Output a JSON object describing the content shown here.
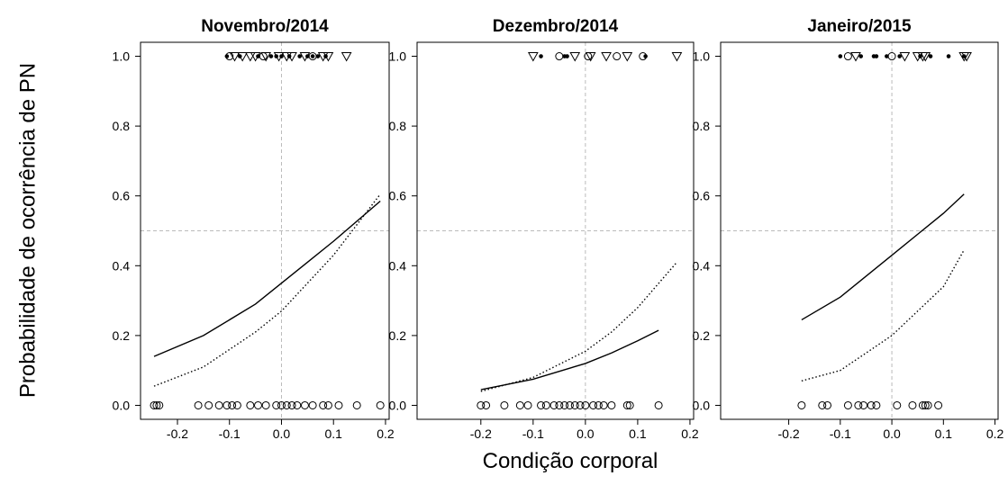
{
  "xlabel": "Condição corporal",
  "ylabel": "Probabilidade de ocorrência de PN",
  "chart_data": [
    {
      "type": "scatter",
      "title": "Novembro/2014",
      "xlim": [
        -0.271,
        0.207
      ],
      "ylim": [
        -0.04,
        1.04
      ],
      "xticks": [
        -0.2,
        -0.1,
        {
          "value": 0,
          "label": "0.0"
        },
        0.1,
        0.2
      ],
      "yticks": [
        {
          "value": 0,
          "label": "0.0"
        },
        0.2,
        0.4,
        0.6,
        0.8,
        {
          "value": 1,
          "label": "1.0"
        }
      ],
      "vline": 0,
      "hline": 0.5,
      "color": "#000000",
      "series": [
        {
          "marker": "circle",
          "x": [
            -0.245,
            -0.24,
            -0.235,
            -0.16,
            -0.14,
            -0.12,
            -0.105,
            -0.095,
            -0.085,
            -0.06,
            -0.045,
            -0.03,
            -0.01,
            0,
            0.01,
            0.02,
            0.03,
            0.045,
            0.06,
            0.08,
            0.09,
            0.11,
            0.145,
            0.19,
            -0.1,
            -0.035,
            0.06
          ],
          "values": [
            0,
            0,
            0,
            0,
            0,
            0,
            0,
            0,
            0,
            0,
            0,
            0,
            0,
            0,
            0,
            0,
            0,
            0,
            0,
            0,
            0,
            0,
            0,
            0,
            1,
            1,
            1
          ]
        },
        {
          "marker": "triangle",
          "x": [
            -0.09,
            -0.075,
            -0.06,
            -0.05,
            -0.03,
            -0.005,
            0.01,
            0.02,
            0.045,
            0.08,
            0.09,
            0.125
          ],
          "values": [
            1,
            1,
            1,
            1,
            1,
            1,
            1,
            1,
            1,
            1,
            1,
            1
          ]
        },
        {
          "marker": "dot",
          "x": [
            -0.105,
            -0.08,
            -0.045,
            -0.02,
            -0.01,
            0,
            0.015,
            0.035,
            0.05,
            0.06,
            0.07,
            0.085
          ],
          "values": [
            1,
            1,
            1,
            1,
            1,
            1,
            1,
            1,
            1,
            1,
            1,
            1
          ]
        },
        {
          "line": "solid",
          "x": [
            -0.245,
            -0.15,
            -0.05,
            0,
            0.05,
            0.1,
            0.19
          ],
          "values": [
            0.14,
            0.2,
            0.29,
            0.35,
            0.41,
            0.47,
            0.585
          ]
        },
        {
          "line": "dotted",
          "x": [
            -0.245,
            -0.15,
            -0.05,
            0,
            0.05,
            0.1,
            0.19
          ],
          "values": [
            0.055,
            0.11,
            0.21,
            0.27,
            0.35,
            0.43,
            0.605
          ]
        }
      ]
    },
    {
      "type": "scatter",
      "title": "Dezembro/2014",
      "xlim": [
        -0.322,
        0.207
      ],
      "ylim": [
        -0.04,
        1.04
      ],
      "xticks": [
        -0.2,
        -0.1,
        {
          "value": 0,
          "label": "0.0"
        },
        0.1,
        0.2
      ],
      "yticks": [
        {
          "value": 0,
          "label": "0.0"
        },
        0.2,
        0.4,
        0.6,
        0.8,
        {
          "value": 1,
          "label": "1.0"
        }
      ],
      "vline": 0,
      "hline": 0.5,
      "color": "#000000",
      "series": [
        {
          "marker": "circle",
          "x": [
            -0.2,
            -0.19,
            -0.155,
            -0.125,
            -0.11,
            -0.085,
            -0.075,
            -0.06,
            -0.05,
            -0.04,
            -0.03,
            -0.02,
            -0.01,
            0,
            0.015,
            0.025,
            0.035,
            0.05,
            0.08,
            0.085,
            0.14,
            -0.05,
            0.005,
            0.06,
            0.11
          ],
          "values": [
            0,
            0,
            0,
            0,
            0,
            0,
            0,
            0,
            0,
            0,
            0,
            0,
            0,
            0,
            0,
            0,
            0,
            0,
            0,
            0,
            0,
            1,
            1,
            1,
            1
          ]
        },
        {
          "marker": "triangle",
          "x": [
            -0.1,
            -0.02,
            0.01,
            0.04,
            0.08,
            0.175
          ],
          "values": [
            1,
            1,
            1,
            1,
            1,
            1
          ]
        },
        {
          "marker": "dot",
          "x": [
            -0.085,
            -0.04,
            -0.035,
            0.115
          ],
          "values": [
            1,
            1,
            1,
            1
          ]
        },
        {
          "line": "solid",
          "x": [
            -0.2,
            -0.1,
            0,
            0.05,
            0.1,
            0.14
          ],
          "values": [
            0.045,
            0.075,
            0.12,
            0.15,
            0.185,
            0.215
          ]
        },
        {
          "line": "dotted",
          "x": [
            -0.2,
            -0.1,
            0,
            0.05,
            0.1,
            0.175
          ],
          "values": [
            0.04,
            0.08,
            0.155,
            0.21,
            0.28,
            0.41
          ]
        }
      ]
    },
    {
      "type": "scatter",
      "title": "Janeiro/2015",
      "xlim": [
        -0.332,
        0.206
      ],
      "ylim": [
        -0.04,
        1.04
      ],
      "xticks": [
        -0.2,
        -0.1,
        {
          "value": 0,
          "label": "0.0"
        },
        0.1,
        0.2
      ],
      "yticks": [
        {
          "value": 0,
          "label": "0.0"
        },
        0.2,
        0.4,
        0.6,
        0.8,
        {
          "value": 1,
          "label": "1.0"
        }
      ],
      "vline": 0,
      "hline": 0.5,
      "color": "#000000",
      "series": [
        {
          "marker": "circle",
          "x": [
            -0.175,
            -0.135,
            -0.125,
            -0.085,
            -0.065,
            -0.055,
            -0.04,
            -0.03,
            0.01,
            0.04,
            0.06,
            0.065,
            0.07,
            0.09,
            -0.085,
            0
          ],
          "values": [
            0,
            0,
            0,
            0,
            0,
            0,
            0,
            0,
            0,
            0,
            0,
            0,
            0,
            0,
            1,
            1
          ]
        },
        {
          "marker": "triangle",
          "x": [
            -0.07,
            0.025,
            0.05,
            0.06,
            0.065,
            0.14,
            0.145
          ],
          "values": [
            1,
            1,
            1,
            1,
            1,
            1,
            1
          ]
        },
        {
          "marker": "dot",
          "x": [
            -0.1,
            -0.06,
            -0.035,
            -0.03,
            -0.01,
            0.015,
            0.055,
            0.075,
            0.11,
            0.14
          ],
          "values": [
            1,
            1,
            1,
            1,
            1,
            1,
            1,
            1,
            1,
            1
          ]
        },
        {
          "line": "solid",
          "x": [
            -0.175,
            -0.1,
            0,
            0.05,
            0.1,
            0.14
          ],
          "values": [
            0.245,
            0.31,
            0.43,
            0.49,
            0.55,
            0.605
          ]
        },
        {
          "line": "dotted",
          "x": [
            -0.175,
            -0.1,
            0,
            0.05,
            0.1,
            0.14
          ],
          "values": [
            0.07,
            0.1,
            0.2,
            0.27,
            0.34,
            0.445
          ]
        }
      ]
    }
  ]
}
